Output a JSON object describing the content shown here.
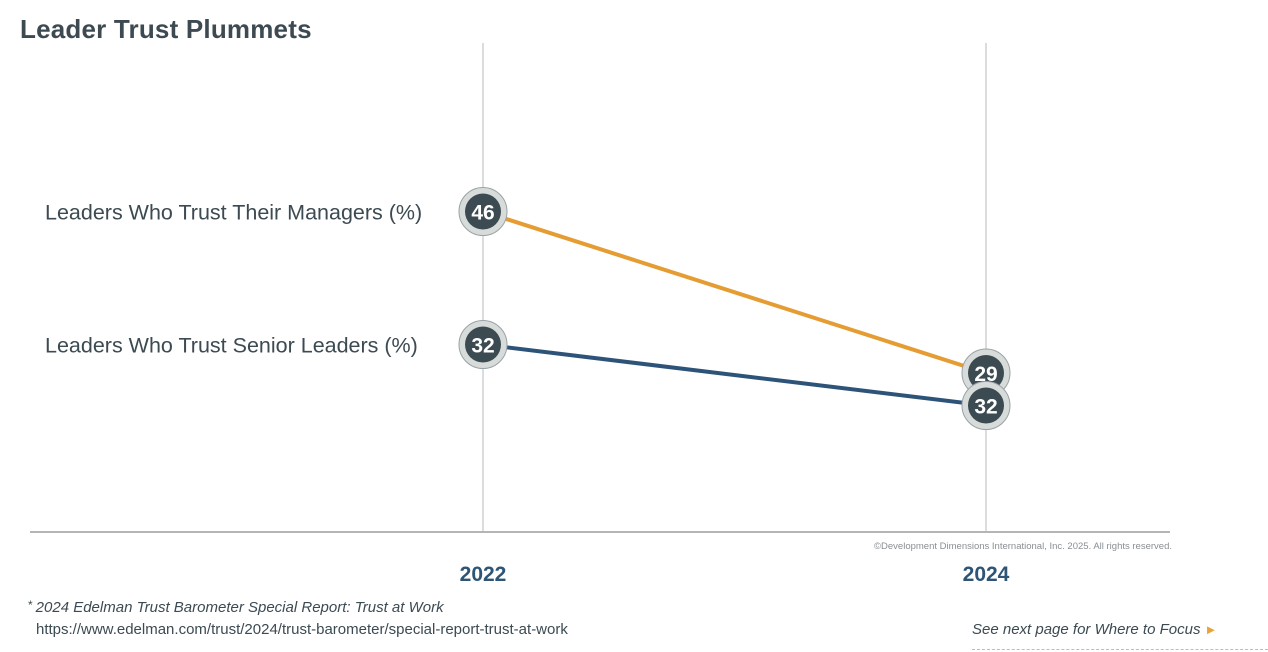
{
  "title": "Leader Trust Plummets",
  "chart_data": {
    "type": "line",
    "title": "Leader Trust Plummets",
    "categories": [
      "2022",
      "2024"
    ],
    "series": [
      {
        "name": "Leaders Who Trust Their Managers (%)",
        "values": [
          46,
          29
        ],
        "color": "#e59c33"
      },
      {
        "name": "Leaders Who Trust Senior Leaders (%)",
        "values": [
          32,
          32
        ],
        "color": "#2d5478"
      }
    ],
    "xlabel": "",
    "ylabel": "",
    "ylim": [
      0,
      80
    ],
    "marker_fill": "#3c4a52",
    "marker_ring": "#d7dcdb",
    "axis_label_color": "#2e5476"
  },
  "copyright": "©Development Dimensions International, Inc. 2025. All rights reserved.",
  "footnote": {
    "star": "*",
    "text": "2024 Edelman Trust Barometer Special Report: Trust at Work",
    "url": "https://www.edelman.com/trust/2024/trust-barometer/special-report-trust-at-work"
  },
  "next_page": {
    "label": "See next page for Where to Focus",
    "arrow": "►"
  }
}
